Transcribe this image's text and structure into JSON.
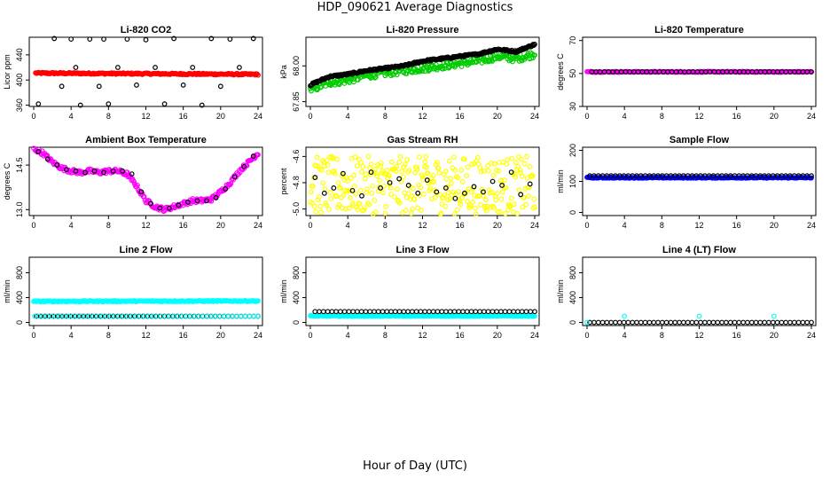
{
  "title": "HDP_090621  Average Diagnostics",
  "xlabel": "Hour of Day (UTC)",
  "colors": {
    "black": "#000000",
    "red": "#ff0000",
    "green": "#00cc00",
    "magenta": "#ff00ff",
    "yellow": "#ffff00",
    "blue": "#0000ff",
    "cyan": "#00ffff"
  },
  "chart_data": [
    {
      "type": "scatter",
      "title": "Li-820 CO2",
      "ylabel": "Licor ppm",
      "xlim": [
        0,
        24
      ],
      "ylim": [
        358,
        468
      ],
      "xticks": [
        "0",
        "4",
        "8",
        "12",
        "16",
        "20",
        "24"
      ],
      "yticks": [
        "360",
        "400",
        "440"
      ],
      "series": [
        {
          "color": "red",
          "pattern": "band",
          "x": [
            0.2,
            24
          ],
          "y": [
            411,
            409
          ],
          "noise": 1.2
        },
        {
          "color": "black",
          "pattern": "scatter",
          "x": [
            0.5,
            2.2,
            3.0,
            4.0,
            4.5,
            5.0,
            6.0,
            7.0,
            7.5,
            8.0,
            9.0,
            10.0,
            11.0,
            12.0,
            13.0,
            14.0,
            15.0,
            16.0,
            17.0,
            18.0,
            19.0,
            20.0,
            21.0,
            22.0,
            23.5
          ],
          "y": [
            362,
            466,
            390,
            465,
            420,
            360,
            465,
            390,
            465,
            362,
            420,
            465,
            392,
            464,
            420,
            362,
            466,
            392,
            420,
            360,
            466,
            390,
            465,
            420,
            466
          ]
        }
      ]
    },
    {
      "type": "scatter",
      "title": "Li-820 Pressure",
      "ylabel": "kPa",
      "xlim": [
        0,
        24
      ],
      "ylim": [
        67.83,
        68.12
      ],
      "xticks": [
        "0",
        "4",
        "8",
        "12",
        "16",
        "20",
        "24"
      ],
      "yticks": [
        "67.85",
        "68.00"
      ],
      "series": [
        {
          "color": "green",
          "pattern": "trend",
          "x": [
            0,
            2,
            4,
            6,
            8,
            10,
            12,
            14,
            16,
            18,
            20,
            22,
            24
          ],
          "y": [
            67.9,
            67.93,
            67.94,
            67.96,
            67.97,
            67.98,
            67.99,
            68.0,
            68.01,
            68.02,
            68.04,
            68.03,
            68.05
          ],
          "noise": 0.015
        },
        {
          "color": "black",
          "pattern": "trend",
          "x": [
            0,
            2,
            4,
            6,
            8,
            10,
            12,
            14,
            16,
            18,
            20,
            22,
            24
          ],
          "y": [
            67.92,
            67.955,
            67.965,
            67.98,
            67.99,
            68.0,
            68.02,
            68.03,
            68.04,
            68.05,
            68.07,
            68.06,
            68.09
          ],
          "noise": 0.004
        }
      ]
    },
    {
      "type": "scatter",
      "title": "Li-820 Temperature",
      "ylabel": "degrees C",
      "xlim": [
        0,
        24
      ],
      "ylim": [
        30,
        72
      ],
      "xticks": [
        "0",
        "4",
        "8",
        "12",
        "16",
        "20",
        "24"
      ],
      "yticks": [
        "30",
        "50",
        "70"
      ],
      "series": [
        {
          "color": "magenta",
          "pattern": "band",
          "x": [
            0,
            24
          ],
          "y": [
            51,
            51
          ],
          "noise": 0.3
        },
        {
          "color": "black",
          "pattern": "line",
          "x": [
            0.5,
            24
          ],
          "y": [
            51,
            51
          ]
        }
      ]
    },
    {
      "type": "scatter",
      "title": "Ambient Box Temperature",
      "ylabel": "degrees C",
      "xlim": [
        0,
        24
      ],
      "ylim": [
        12.8,
        15.1
      ],
      "xticks": [
        "0",
        "4",
        "8",
        "12",
        "16",
        "20",
        "24"
      ],
      "yticks": [
        "13.0",
        "14.5"
      ],
      "series": [
        {
          "color": "magenta",
          "pattern": "trend",
          "x": [
            0,
            1,
            2,
            3,
            4,
            5,
            6,
            7,
            8,
            9,
            10,
            11,
            12,
            13,
            14,
            15,
            16,
            17,
            18,
            19,
            20,
            21,
            22,
            23,
            24
          ],
          "y": [
            15.05,
            14.9,
            14.6,
            14.4,
            14.3,
            14.25,
            14.3,
            14.25,
            14.3,
            14.3,
            14.2,
            13.8,
            13.3,
            13.1,
            13.0,
            13.1,
            13.2,
            13.3,
            13.3,
            13.35,
            13.6,
            13.9,
            14.3,
            14.6,
            14.9
          ],
          "noise": 0.07
        },
        {
          "color": "black",
          "pattern": "scatter",
          "x": [
            0.5,
            1.5,
            2.5,
            3.5,
            4.5,
            5.5,
            6.5,
            7.5,
            8.5,
            9.5,
            10.5,
            11.5,
            12.5,
            13.5,
            14.5,
            15.5,
            16.5,
            17.5,
            18.5,
            19.5,
            20.5,
            21.5,
            22.5,
            23.5
          ],
          "y": [
            14.95,
            14.7,
            14.5,
            14.35,
            14.3,
            14.25,
            14.3,
            14.25,
            14.3,
            14.3,
            14.2,
            13.6,
            13.2,
            13.05,
            13.05,
            13.15,
            13.25,
            13.3,
            13.3,
            13.4,
            13.7,
            14.1,
            14.45,
            14.8
          ]
        }
      ]
    },
    {
      "type": "scatter",
      "title": "Gas Stream RH",
      "ylabel": "percent",
      "xlim": [
        0,
        24
      ],
      "ylim": [
        -5.05,
        -4.53
      ],
      "xticks": [
        "0",
        "4",
        "8",
        "12",
        "16",
        "20",
        "24"
      ],
      "yticks": [
        "-5.0",
        "-4.8",
        "-4.6"
      ],
      "series": [
        {
          "color": "yellow",
          "pattern": "cloud",
          "x": [
            0,
            24
          ],
          "y": [
            -4.82,
            -4.82
          ],
          "noise": 0.22
        },
        {
          "color": "black",
          "pattern": "scatter",
          "x": [
            0.5,
            1.5,
            2.5,
            3.5,
            4.5,
            5.5,
            6.5,
            7.5,
            8.5,
            9.5,
            10.5,
            11.5,
            12.5,
            13.5,
            14.5,
            15.5,
            16.5,
            17.5,
            18.5,
            19.5,
            20.5,
            21.5,
            22.5,
            23.5
          ],
          "y": [
            -4.76,
            -4.88,
            -4.84,
            -4.73,
            -4.86,
            -4.9,
            -4.72,
            -4.84,
            -4.8,
            -4.77,
            -4.82,
            -4.88,
            -4.78,
            -4.87,
            -4.84,
            -4.92,
            -4.88,
            -4.83,
            -4.87,
            -4.79,
            -4.82,
            -4.72,
            -4.89,
            -4.81
          ]
        }
      ]
    },
    {
      "type": "scatter",
      "title": "Sample Flow",
      "ylabel": "ml/min",
      "xlim": [
        0,
        24
      ],
      "ylim": [
        -10,
        210
      ],
      "xticks": [
        "0",
        "4",
        "8",
        "12",
        "16",
        "20",
        "24"
      ],
      "yticks": [
        "0",
        "100",
        "200"
      ],
      "series": [
        {
          "color": "blue",
          "pattern": "band",
          "x": [
            0,
            24
          ],
          "y": [
            112,
            112
          ],
          "noise": 1.5
        },
        {
          "color": "black",
          "pattern": "line",
          "x": [
            0.3,
            24
          ],
          "y": [
            118,
            118
          ]
        }
      ]
    },
    {
      "type": "scatter",
      "title": "Line 2 Flow",
      "ylabel": "ml/min",
      "xlim": [
        0,
        24
      ],
      "ylim": [
        -50,
        1050
      ],
      "xticks": [
        "0",
        "4",
        "8",
        "12",
        "16",
        "20",
        "24"
      ],
      "yticks": [
        "0",
        "400",
        "800"
      ],
      "series": [
        {
          "color": "cyan",
          "pattern": "band",
          "x": [
            0,
            24
          ],
          "y": [
            340,
            345
          ],
          "noise": 8
        },
        {
          "color": "black",
          "pattern": "line",
          "x": [
            0.3,
            24
          ],
          "y": [
            100,
            100
          ]
        },
        {
          "color": "cyan",
          "pattern": "line",
          "x": [
            0.1,
            24
          ],
          "y": [
            100,
            100
          ]
        }
      ]
    },
    {
      "type": "scatter",
      "title": "Line 3 Flow",
      "ylabel": "ml/min",
      "xlim": [
        0,
        24
      ],
      "ylim": [
        -50,
        1050
      ],
      "xticks": [
        "0",
        "4",
        "8",
        "12",
        "16",
        "20",
        "24"
      ],
      "yticks": [
        "0",
        "400",
        "800"
      ],
      "series": [
        {
          "color": "cyan",
          "pattern": "band",
          "x": [
            0,
            24
          ],
          "y": [
            105,
            105
          ],
          "noise": 6
        },
        {
          "color": "black",
          "pattern": "line",
          "x": [
            0.5,
            24
          ],
          "y": [
            175,
            175
          ]
        }
      ]
    },
    {
      "type": "scatter",
      "title": "Line 4 (LT) Flow",
      "ylabel": "ml/min",
      "xlim": [
        0,
        24
      ],
      "ylim": [
        -50,
        1050
      ],
      "xticks": [
        "0",
        "4",
        "8",
        "12",
        "16",
        "20",
        "24"
      ],
      "yticks": [
        "0",
        "400",
        "800"
      ],
      "series": [
        {
          "color": "black",
          "pattern": "line",
          "x": [
            0.3,
            24
          ],
          "y": [
            0,
            0
          ]
        },
        {
          "color": "cyan",
          "pattern": "scatter",
          "x": [
            0.0,
            4.0,
            12.0,
            20.0
          ],
          "y": [
            0,
            100,
            100,
            100
          ]
        }
      ]
    }
  ]
}
